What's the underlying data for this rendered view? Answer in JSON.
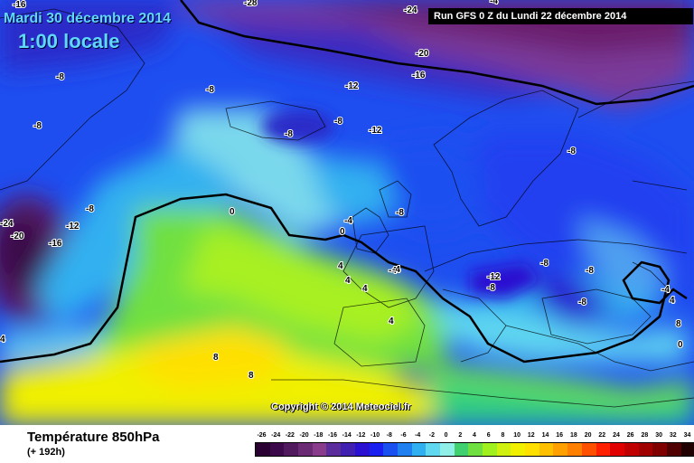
{
  "header": {
    "date": "Mardi 30 décembre 2014",
    "time": "1:00 locale",
    "run": "Run GFS 0 Z du Lundi 22 décembre 2014"
  },
  "map": {
    "copyright": "Copyright © 2014 Meteociel.fr",
    "labels": [
      "-16",
      "-28",
      "-24",
      "-20",
      "-16",
      "-8",
      "-8",
      "-12",
      "-8",
      "-8",
      "-12",
      "-8",
      "-8",
      "-12",
      "-24",
      "-20",
      "-16",
      "-8",
      "0",
      "-4",
      "0",
      "-8",
      "-8",
      "-12",
      "-8",
      "-8",
      "-8",
      "-4",
      "4",
      "4",
      "4",
      "-4",
      "4",
      "4",
      "8",
      "8",
      "8",
      "4",
      "0",
      "-4",
      "-4"
    ]
  },
  "footer": {
    "variable": "Température 850hPa",
    "step": "(+ 192h)"
  },
  "legend": {
    "ticks": [
      "-26",
      "-24",
      "-22",
      "-20",
      "-18",
      "-16",
      "-14",
      "-12",
      "-10",
      "-8",
      "-6",
      "-4",
      "-2",
      "0",
      "2",
      "4",
      "6",
      "8",
      "10",
      "12",
      "14",
      "16",
      "18",
      "20",
      "22",
      "24",
      "26",
      "28",
      "30",
      "32",
      "34"
    ],
    "colors": [
      "#2a0033",
      "#3c0a4a",
      "#521a5e",
      "#6a2a74",
      "#8a3c8c",
      "#5a2c9c",
      "#4020b0",
      "#2a10d0",
      "#1a20f0",
      "#1a50f0",
      "#2080f0",
      "#30b0f0",
      "#60d8f0",
      "#90f0e8",
      "#40d070",
      "#70e040",
      "#a0f020",
      "#d0f010",
      "#f0f000",
      "#ffe000",
      "#ffc000",
      "#ffa000",
      "#ff8000",
      "#ff5000",
      "#ff2000",
      "#e00000",
      "#c00000",
      "#a00000",
      "#800000",
      "#500000",
      "#200000"
    ]
  }
}
